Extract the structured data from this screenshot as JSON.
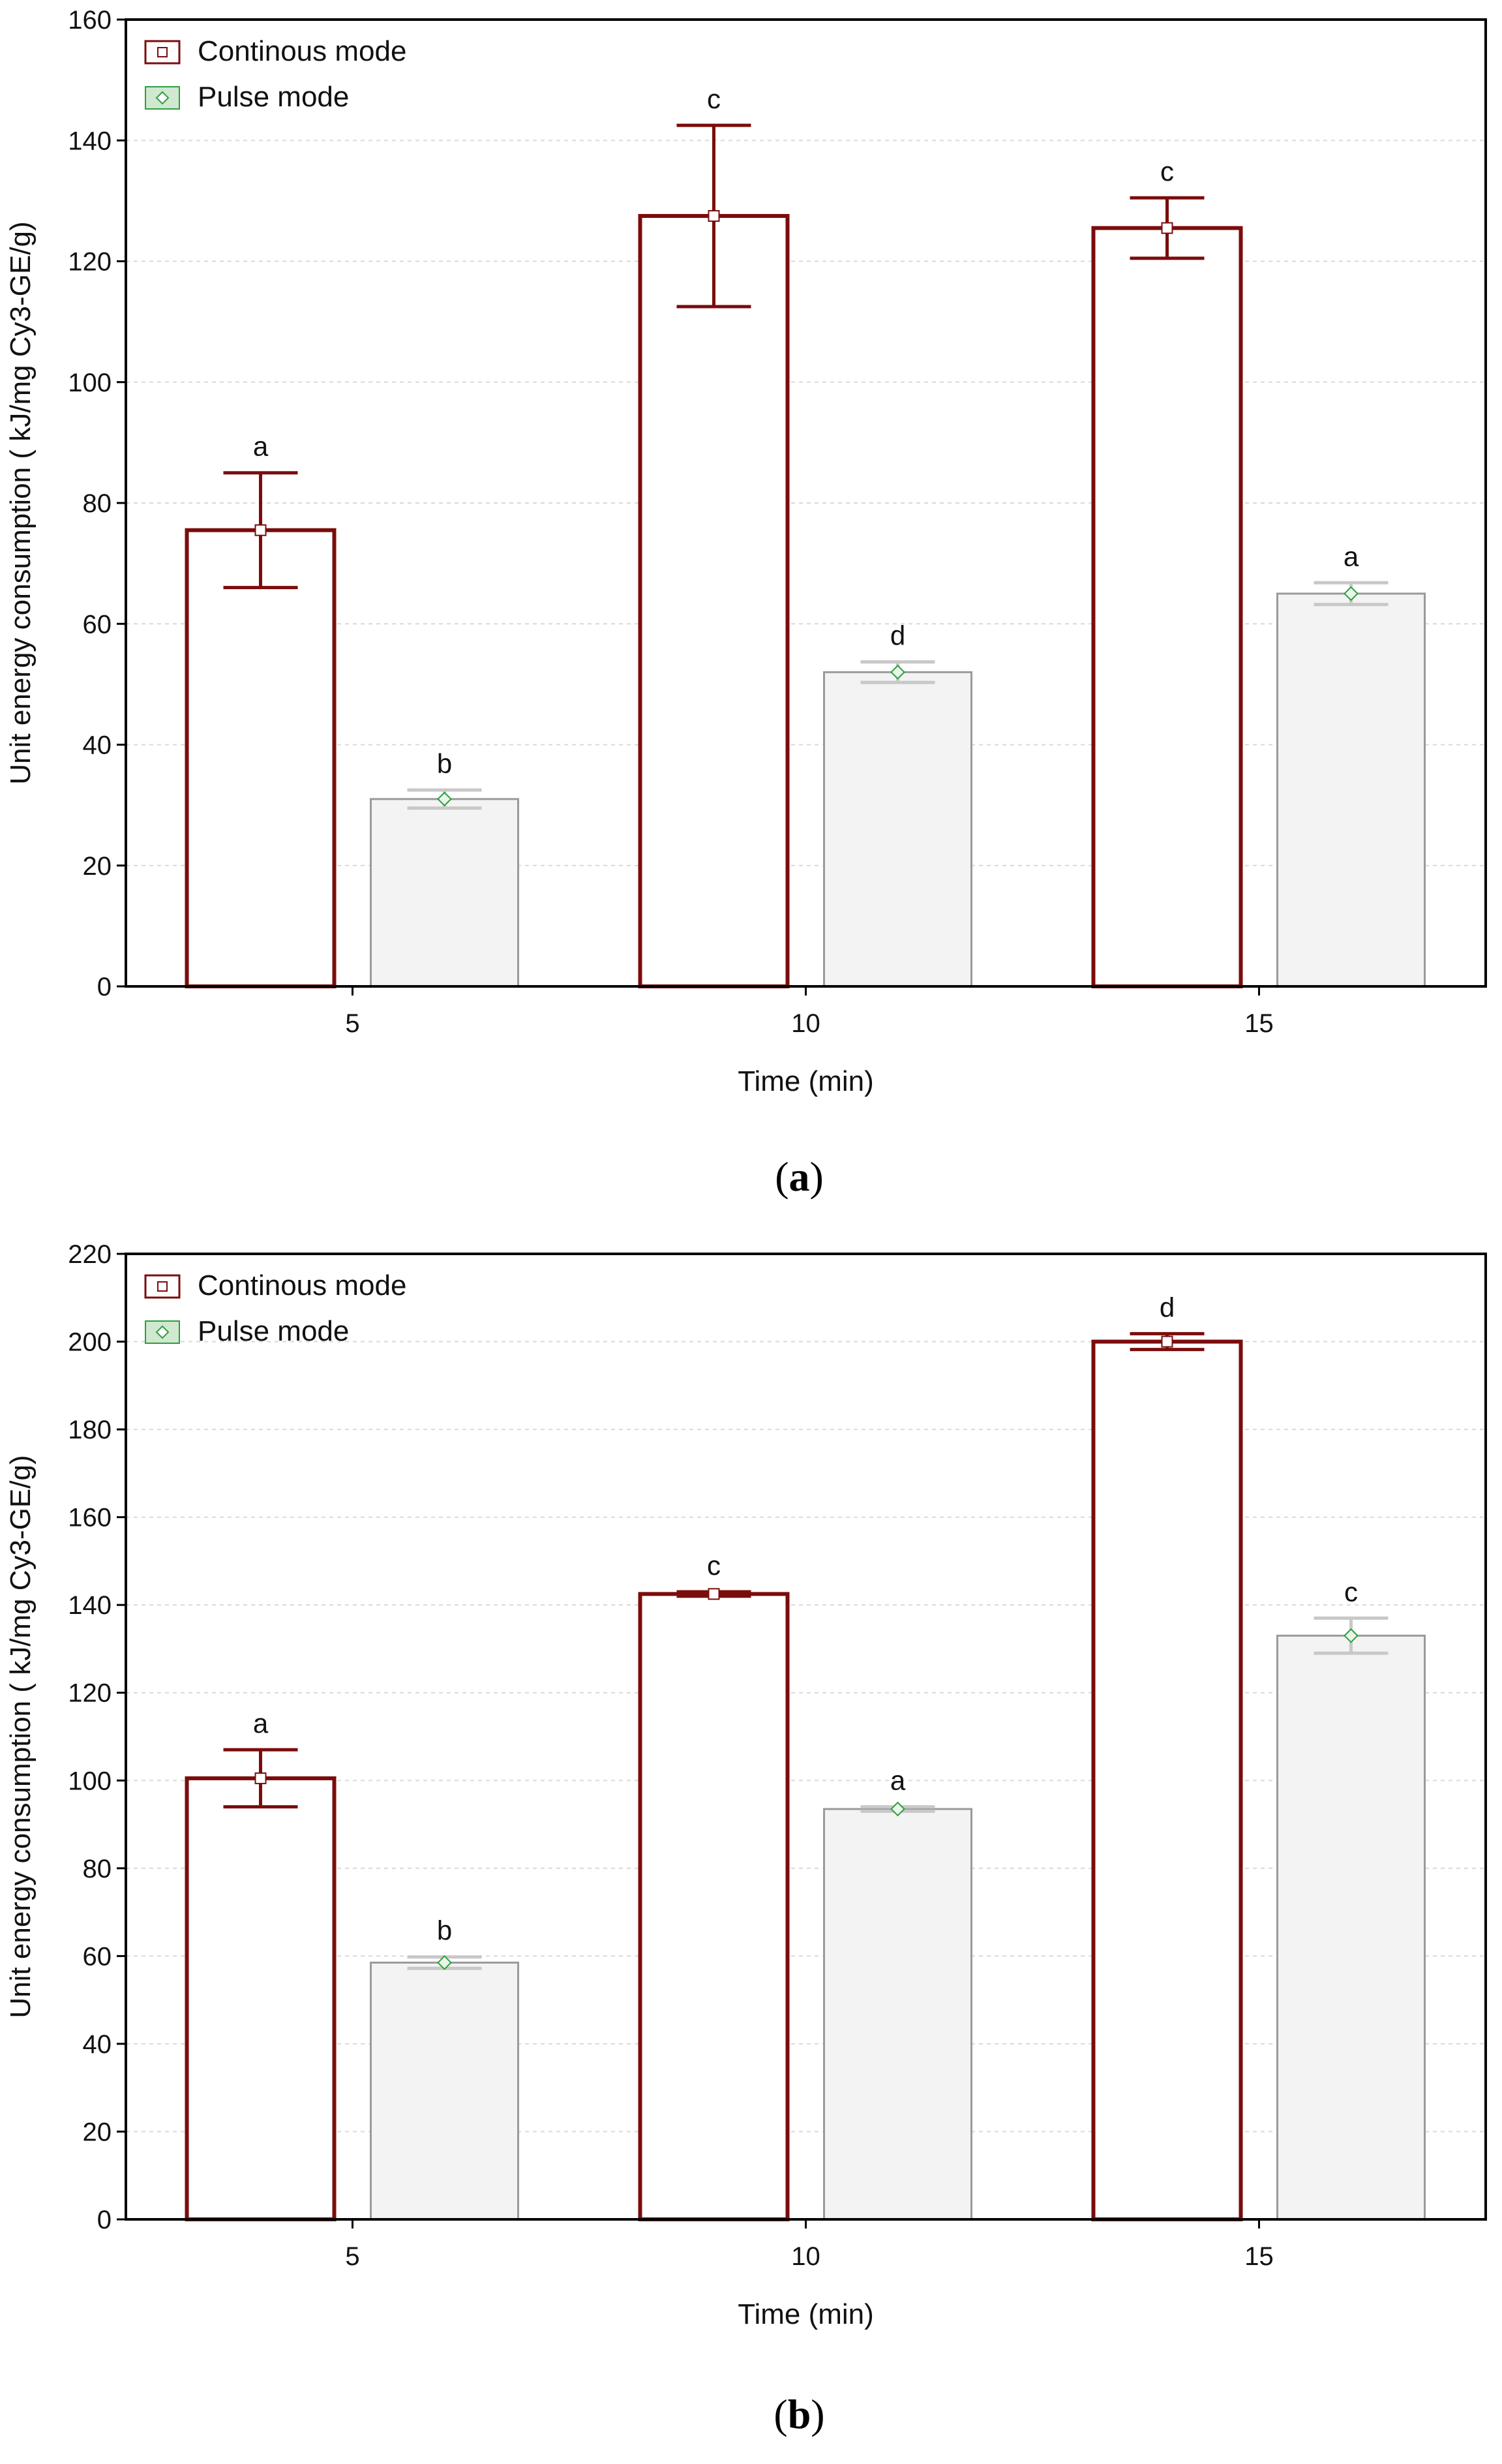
{
  "colors": {
    "continuous": "#7b0c0c",
    "pulse_fill": "#f3f3f3",
    "pulse_stroke": "#9a9a9a",
    "pulse_marker": "#2e9e3e",
    "pulse_err": "#c8c8c8",
    "grid": "#d9d9d9"
  },
  "panels": [
    {
      "label_open": "(",
      "label_letter": "a",
      "label_close": ")"
    },
    {
      "label_open": "(",
      "label_letter": "b",
      "label_close": ")"
    }
  ],
  "chart_data": [
    {
      "type": "bar",
      "title": "",
      "xlabel": "Time (min)",
      "ylabel": "Unit energy consumption ( kJ/mg Cy3-GE/g)",
      "categories": [
        "5",
        "10",
        "15"
      ],
      "ylim": [
        0,
        160
      ],
      "yticks": [
        0,
        20,
        40,
        60,
        80,
        100,
        120,
        140,
        160
      ],
      "grid": true,
      "legend_position": "top-left",
      "series": [
        {
          "name": "Continous mode",
          "values": [
            75.5,
            127.5,
            125.5
          ],
          "errors": [
            9.5,
            15.0,
            5.0
          ],
          "labels": [
            "a",
            "c",
            "c"
          ]
        },
        {
          "name": "Pulse mode",
          "values": [
            31.0,
            52.0,
            65.0
          ],
          "errors": [
            1.5,
            1.7,
            1.8
          ],
          "labels": [
            "b",
            "d",
            "a"
          ]
        }
      ]
    },
    {
      "type": "bar",
      "title": "",
      "xlabel": "Time (min)",
      "ylabel": "Unit energy consumption ( kJ/mg Cy3-GE/g)",
      "categories": [
        "5",
        "10",
        "15"
      ],
      "ylim": [
        0,
        220
      ],
      "yticks": [
        0,
        20,
        40,
        60,
        80,
        100,
        120,
        140,
        160,
        180,
        200,
        220
      ],
      "grid": true,
      "legend_position": "top-left",
      "series": [
        {
          "name": "Continous mode",
          "values": [
            100.5,
            142.5,
            200.0
          ],
          "errors": [
            6.5,
            0.5,
            1.8
          ],
          "labels": [
            "a",
            "c",
            "d"
          ]
        },
        {
          "name": "Pulse mode",
          "values": [
            58.5,
            93.5,
            133.0
          ],
          "errors": [
            1.3,
            0.5,
            4.0
          ],
          "labels": [
            "b",
            "a",
            "c"
          ]
        }
      ]
    }
  ]
}
